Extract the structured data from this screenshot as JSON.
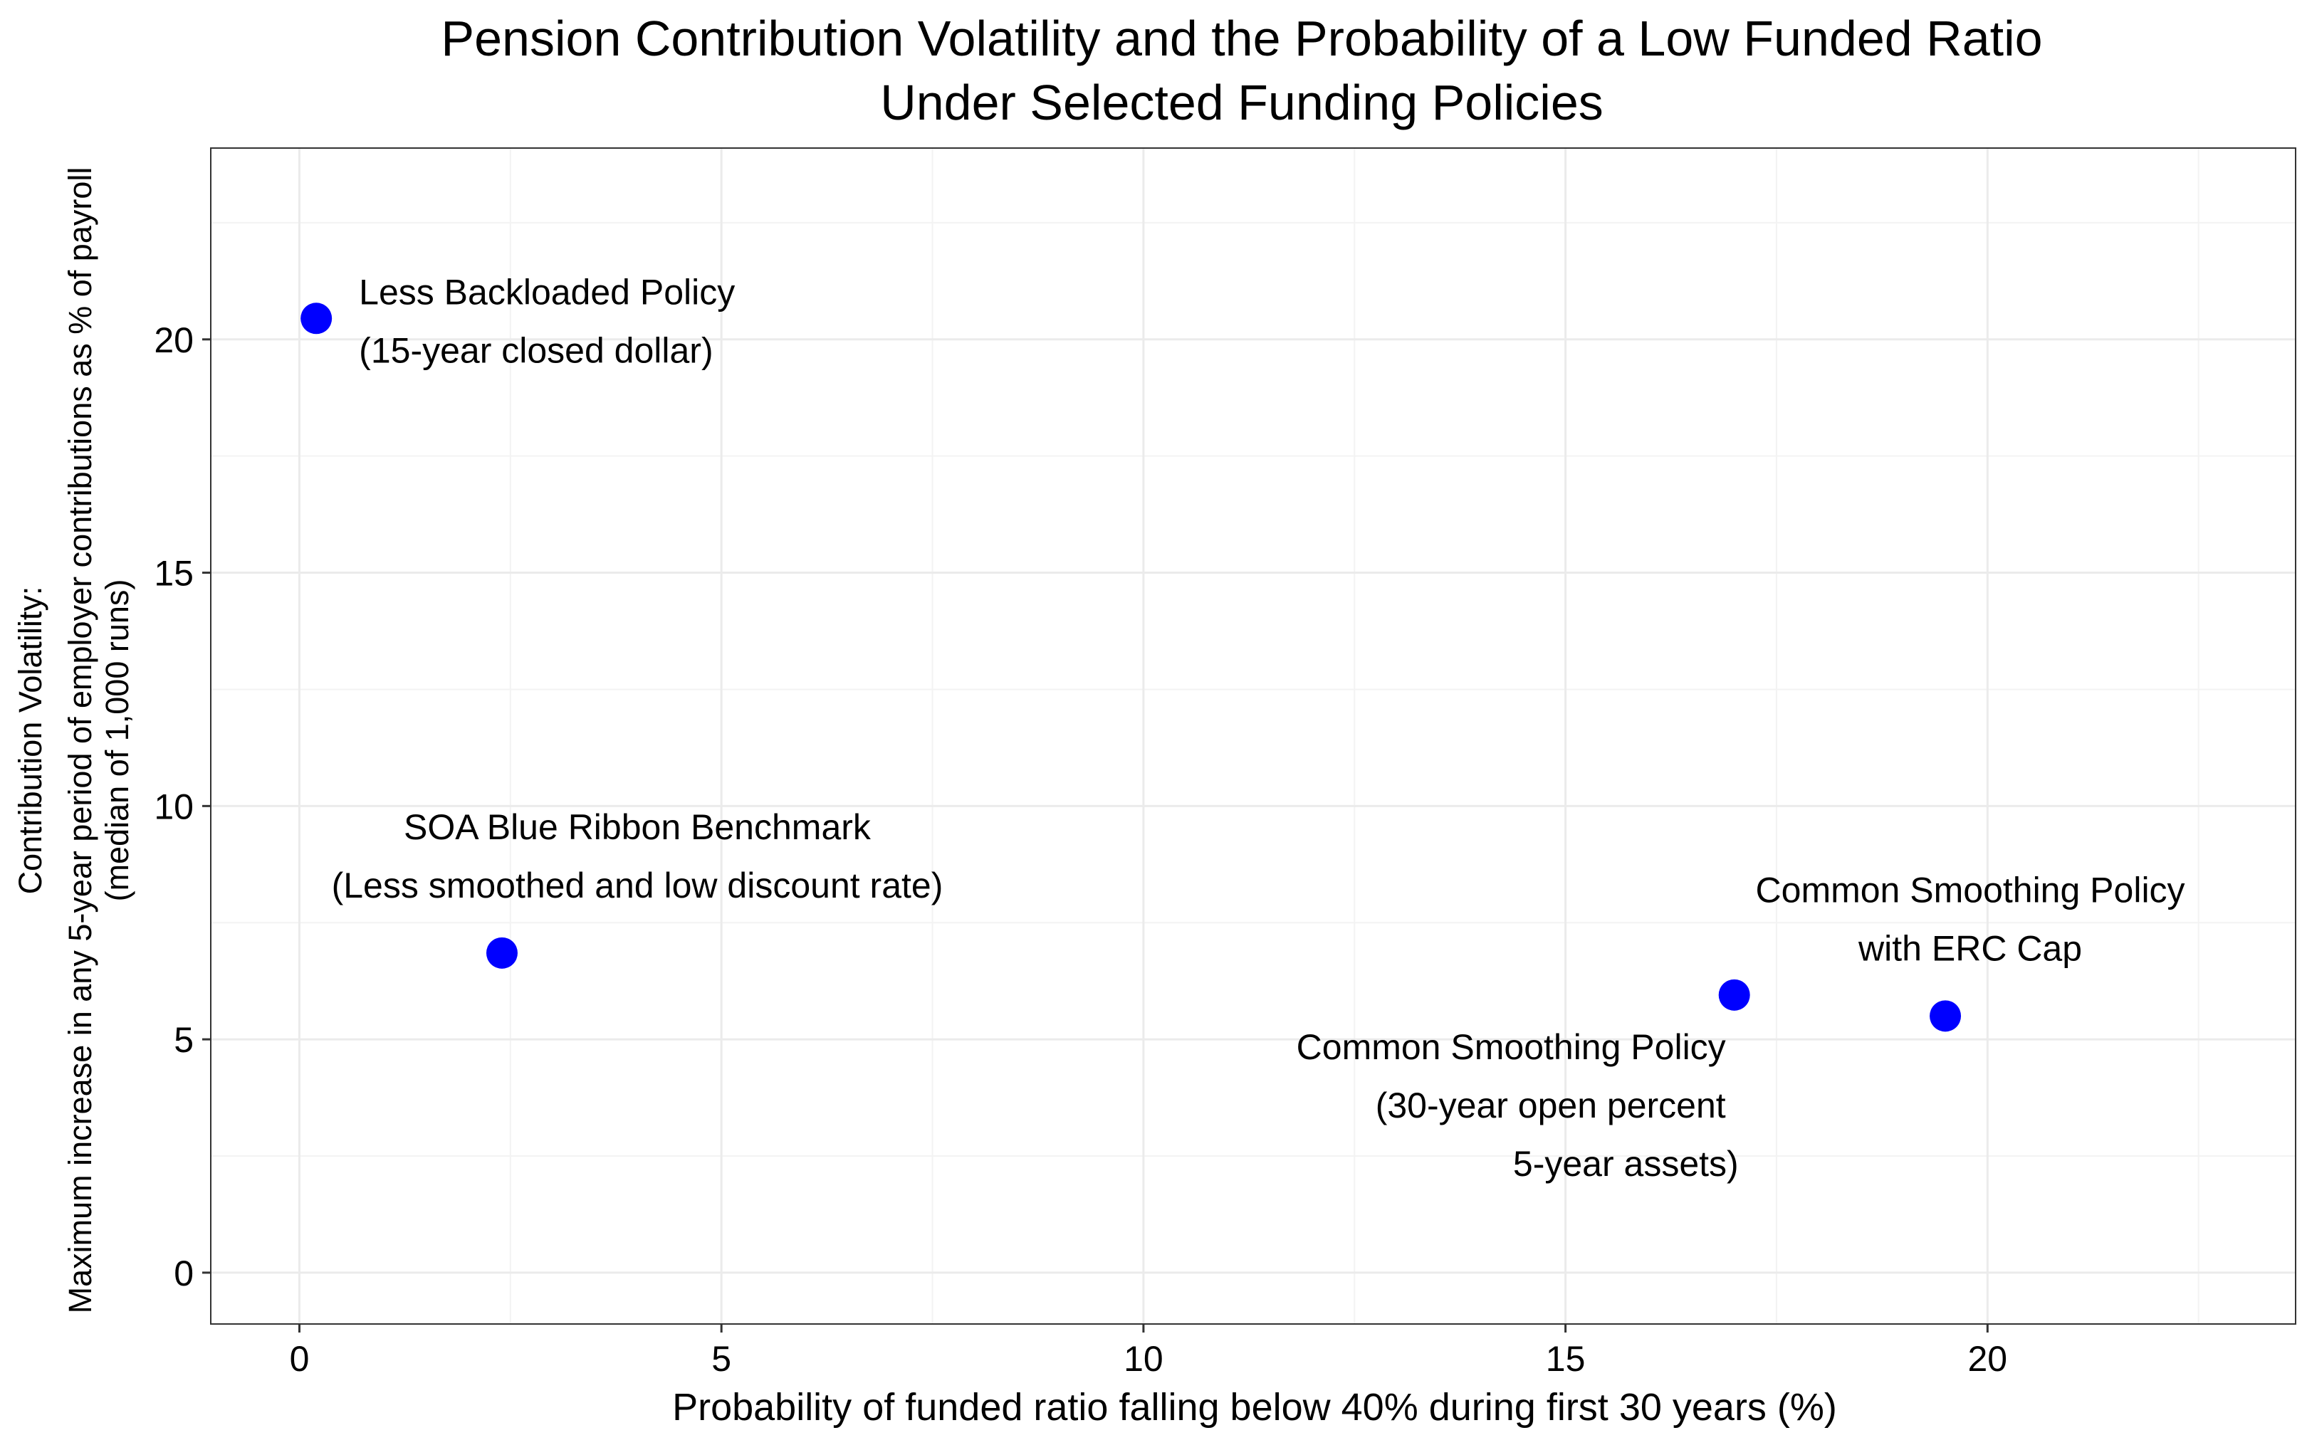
{
  "chart_data": {
    "type": "scatter",
    "title": "Pension Contribution Volatility and the Probability of a Low Funded Ratio",
    "subtitle": "Under Selected Funding Policies",
    "xlabel": "Probability of funded ratio falling below 40% during first 30 years (%)",
    "ylabel": [
      "Contribution Volatility:",
      "Maximum increase in any 5-year period of employer contributions as % of payroll",
      "(median of 1,000 runs)"
    ],
    "xlim": [
      -1.05,
      23.65
    ],
    "ylim": [
      -1.1,
      24.1
    ],
    "x_ticks": [
      0,
      5,
      10,
      15,
      20
    ],
    "y_ticks": [
      0,
      5,
      10,
      15,
      20
    ],
    "x_tick_labels": [
      "0",
      "5",
      "10",
      "15",
      "20"
    ],
    "y_tick_labels": [
      "0",
      "5",
      "10",
      "15",
      "20"
    ],
    "grid": true,
    "legend": "none",
    "point_color": "#0000FF",
    "points": [
      {
        "x": 0.2,
        "y": 20.45,
        "label_lines": [
          "Less Backloaded Policy",
          "(15-year closed dollar)"
        ]
      },
      {
        "x": 2.4,
        "y": 6.85,
        "label_lines": [
          "SOA Blue Ribbon Benchmark",
          "(Less smoothed and low discount rate)"
        ]
      },
      {
        "x": 17.0,
        "y": 5.95,
        "label_lines": [
          "Common Smoothing Policy",
          "(30-year open percent",
          "5-year assets)"
        ]
      },
      {
        "x": 19.5,
        "y": 5.5,
        "label_lines": [
          "Common Smoothing Policy",
          "with ERC Cap"
        ]
      }
    ]
  }
}
